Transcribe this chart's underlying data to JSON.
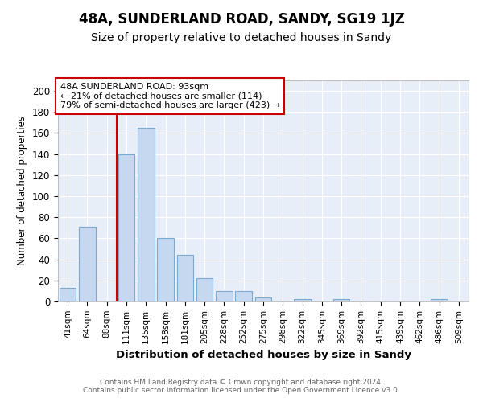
{
  "title": "48A, SUNDERLAND ROAD, SANDY, SG19 1JZ",
  "subtitle": "Size of property relative to detached houses in Sandy",
  "xlabel": "Distribution of detached houses by size in Sandy",
  "ylabel": "Number of detached properties",
  "categories": [
    "41sqm",
    "64sqm",
    "88sqm",
    "111sqm",
    "135sqm",
    "158sqm",
    "181sqm",
    "205sqm",
    "228sqm",
    "252sqm",
    "275sqm",
    "298sqm",
    "322sqm",
    "345sqm",
    "369sqm",
    "392sqm",
    "415sqm",
    "439sqm",
    "462sqm",
    "486sqm",
    "509sqm"
  ],
  "values": [
    13,
    71,
    0,
    140,
    165,
    60,
    44,
    22,
    10,
    10,
    4,
    0,
    2,
    0,
    2,
    0,
    0,
    0,
    0,
    2,
    0
  ],
  "bar_color": "#c5d8f0",
  "bar_edgecolor": "#7aaad0",
  "red_line_index": 2,
  "annotation_text": "48A SUNDERLAND ROAD: 93sqm\n← 21% of detached houses are smaller (114)\n79% of semi-detached houses are larger (423) →",
  "annotation_box_color": "#ffffff",
  "annotation_box_edgecolor": "#cc0000",
  "footer": "Contains HM Land Registry data © Crown copyright and database right 2024.\nContains public sector information licensed under the Open Government Licence v3.0.",
  "ylim": [
    0,
    210
  ],
  "yticks": [
    0,
    20,
    40,
    60,
    80,
    100,
    120,
    140,
    160,
    180,
    200
  ],
  "fig_bg_color": "#ffffff",
  "plot_bg_color": "#e8eef8",
  "title_fontsize": 12,
  "subtitle_fontsize": 10,
  "grid_color": "#ffffff",
  "footer_color": "#666666"
}
